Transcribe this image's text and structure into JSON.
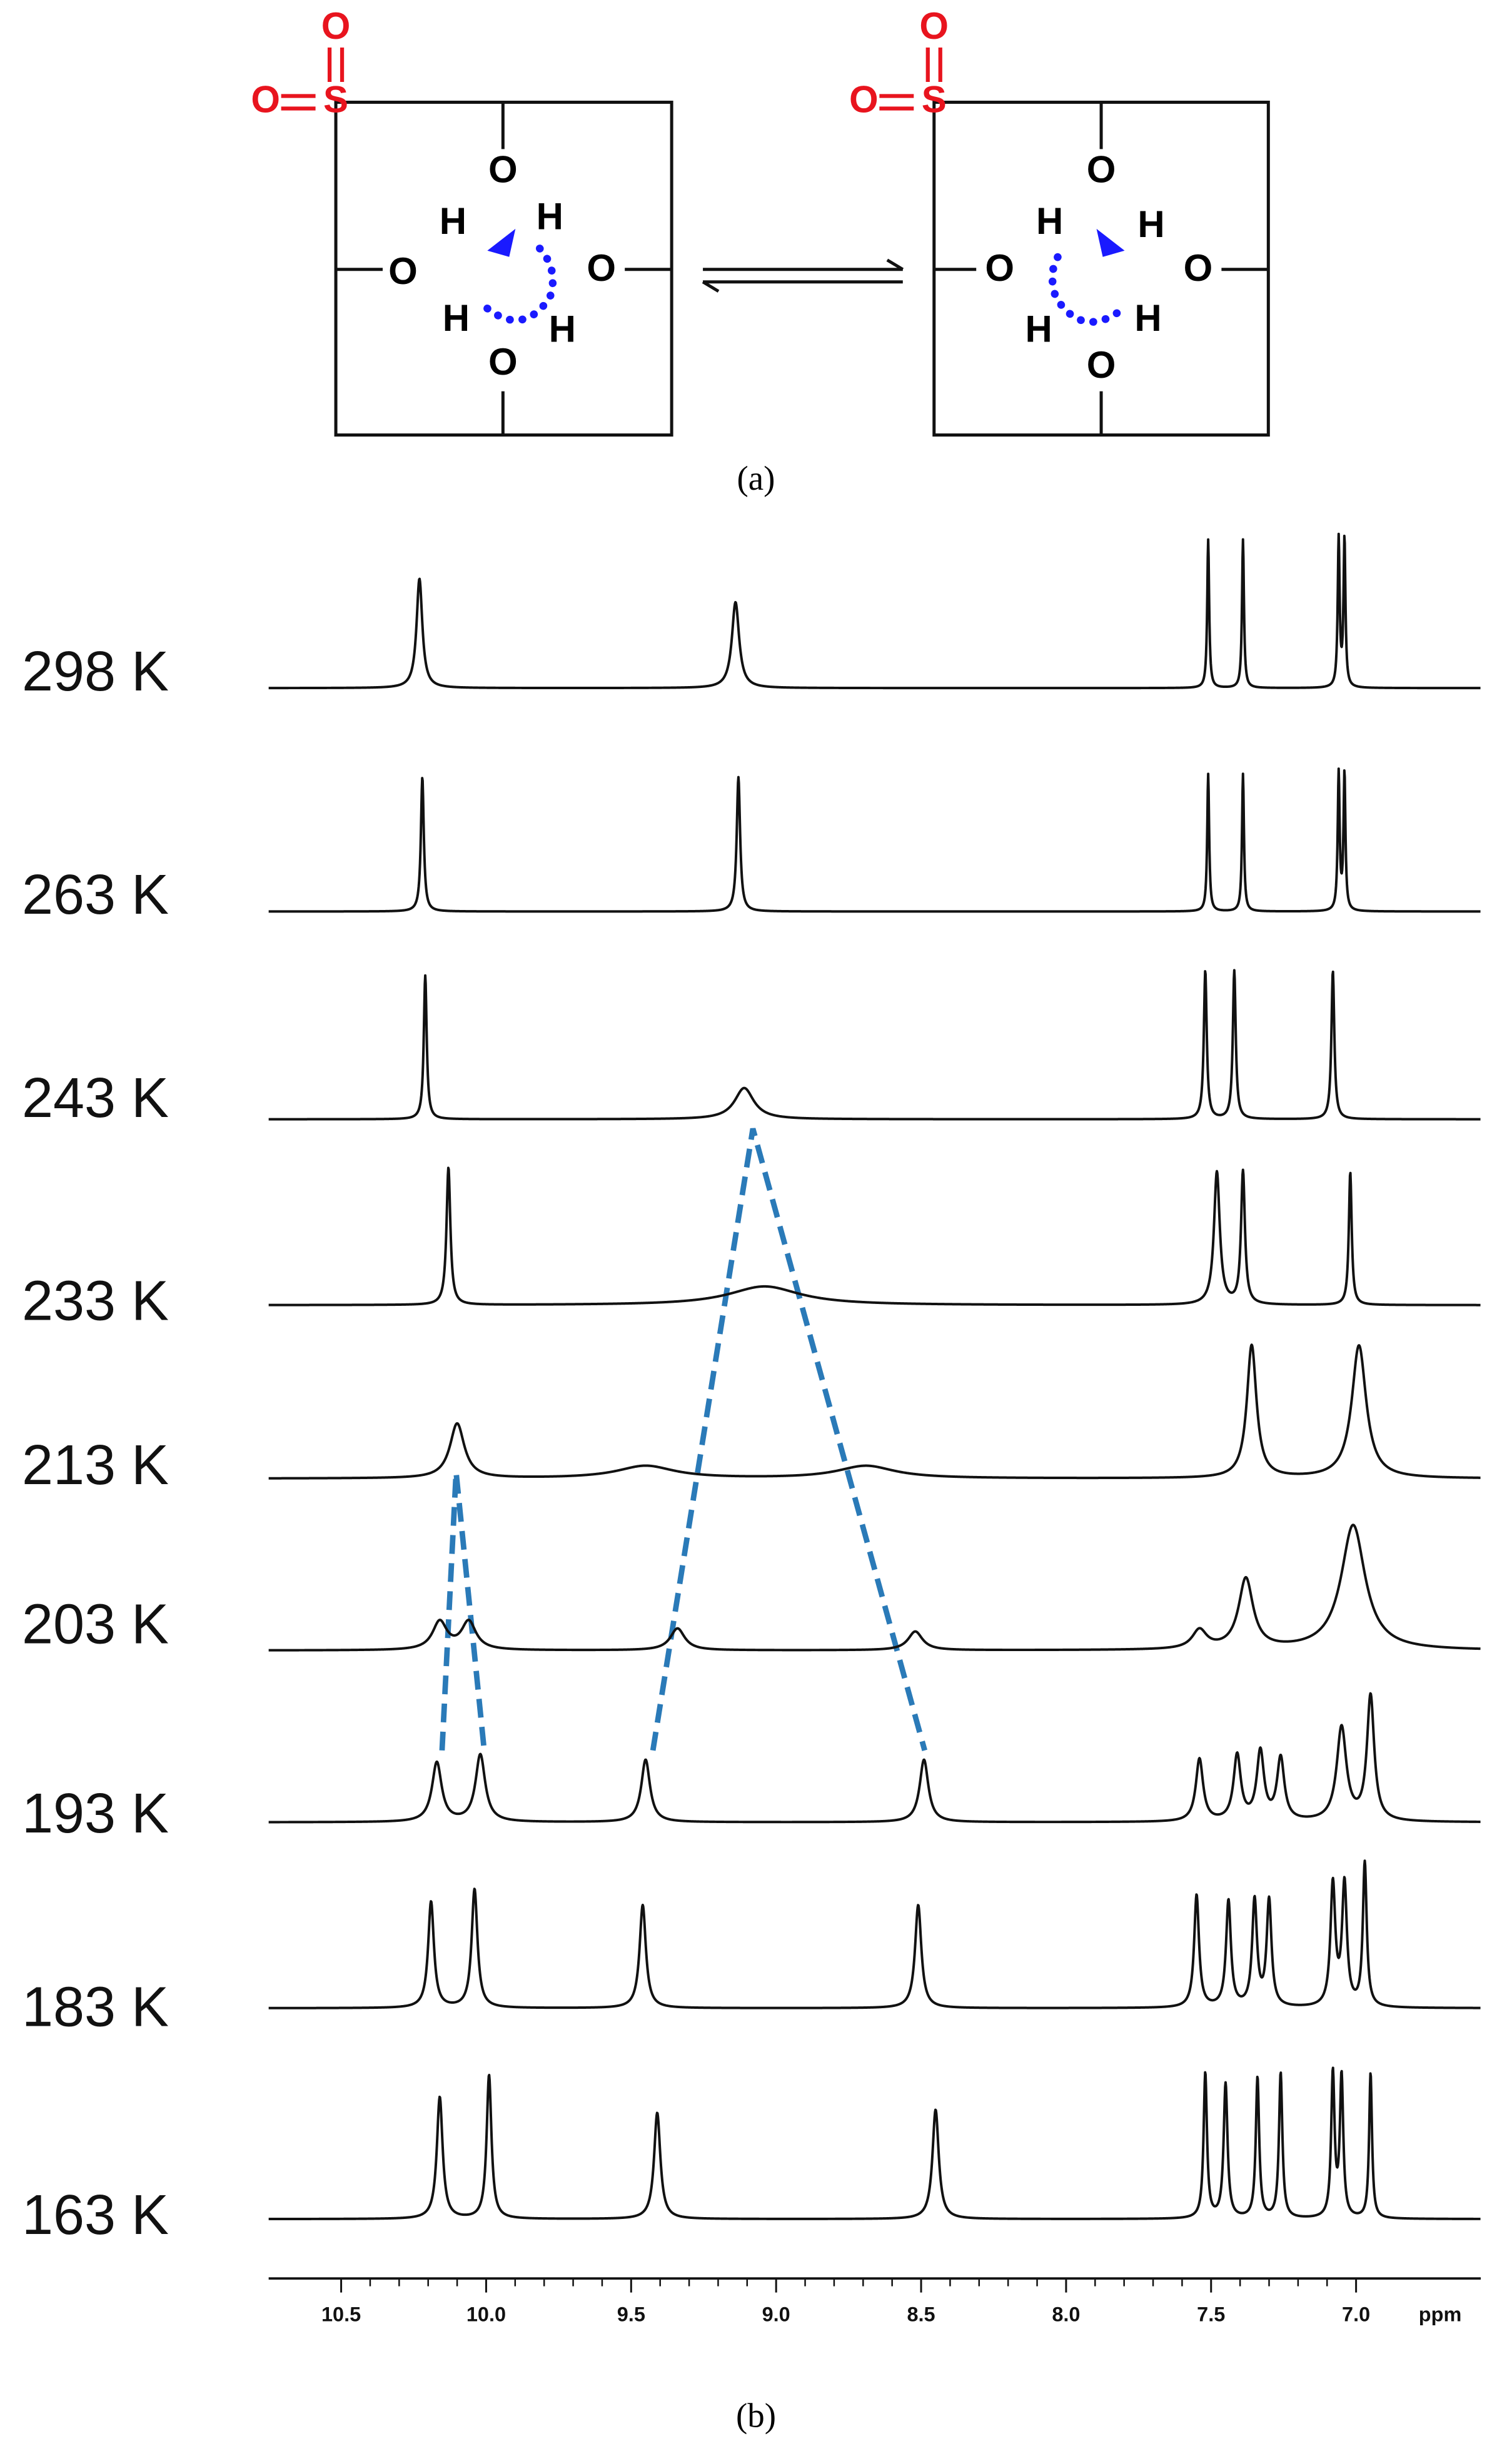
{
  "scheme": {
    "label": "(a)",
    "left_atoms": [
      "S",
      "O",
      "O",
      "O",
      "H",
      "H",
      "O",
      "O",
      "H",
      "H",
      "O"
    ],
    "right_atoms": [
      "S",
      "O",
      "O",
      "O",
      "H",
      "H",
      "O",
      "O",
      "H",
      "H",
      "O"
    ]
  },
  "chart_data": {
    "type": "stacked-spectra",
    "label": "(b)",
    "x_unit": "ppm",
    "xlim": [
      10.75,
      6.57
    ],
    "xticks": [
      10.5,
      {
        "value": 10,
        "label": "10.0"
      },
      9.5,
      {
        "value": 9,
        "label": "9.0"
      },
      8.5,
      {
        "value": 8,
        "label": "8.0"
      },
      7.5,
      {
        "value": 7,
        "label": "7.0"
      }
    ],
    "color": "#111111",
    "spectra": [
      {
        "name": "298 K",
        "peaks": [
          {
            "ppm": 10.23,
            "height": 70,
            "width": 0.012
          },
          {
            "ppm": 9.14,
            "height": 55,
            "width": 0.015
          },
          {
            "ppm": 7.51,
            "height": 95,
            "width": 0.004
          },
          {
            "ppm": 7.39,
            "height": 95,
            "width": 0.004
          },
          {
            "ppm": 7.06,
            "height": 95,
            "width": 0.004
          },
          {
            "ppm": 7.04,
            "height": 95,
            "width": 0.004
          }
        ]
      },
      {
        "name": "263 K",
        "peaks": [
          {
            "ppm": 10.22,
            "height": 86,
            "width": 0.006
          },
          {
            "ppm": 9.13,
            "height": 86,
            "width": 0.007
          },
          {
            "ppm": 7.51,
            "height": 88,
            "width": 0.004
          },
          {
            "ppm": 7.39,
            "height": 88,
            "width": 0.004
          },
          {
            "ppm": 7.06,
            "height": 88,
            "width": 0.004
          },
          {
            "ppm": 7.04,
            "height": 88,
            "width": 0.004
          }
        ]
      },
      {
        "name": "243 K",
        "peaks": [
          {
            "ppm": 10.21,
            "height": 92,
            "width": 0.006
          },
          {
            "ppm": 9.11,
            "height": 20,
            "width": 0.04
          },
          {
            "ppm": 7.52,
            "height": 95,
            "width": 0.006
          },
          {
            "ppm": 7.42,
            "height": 95,
            "width": 0.006
          },
          {
            "ppm": 7.08,
            "height": 95,
            "width": 0.006
          }
        ]
      },
      {
        "name": "233 K",
        "peaks": [
          {
            "ppm": 10.13,
            "height": 88,
            "width": 0.008
          },
          {
            "ppm": 9.04,
            "height": 12,
            "width": 0.15
          },
          {
            "ppm": 7.48,
            "height": 85,
            "width": 0.012
          },
          {
            "ppm": 7.39,
            "height": 85,
            "width": 0.008
          },
          {
            "ppm": 7.02,
            "height": 85,
            "width": 0.006
          }
        ]
      },
      {
        "name": "213 K",
        "peaks": [
          {
            "ppm": 10.1,
            "height": 35,
            "width": 0.03
          },
          {
            "ppm": 9.45,
            "height": 8,
            "width": 0.12
          },
          {
            "ppm": 8.69,
            "height": 8,
            "width": 0.12
          },
          {
            "ppm": 7.36,
            "height": 85,
            "width": 0.02
          },
          {
            "ppm": 6.99,
            "height": 85,
            "width": 0.03
          }
        ]
      },
      {
        "name": "203 K",
        "peaks": [
          {
            "ppm": 10.16,
            "height": 18,
            "width": 0.03
          },
          {
            "ppm": 10.06,
            "height": 18,
            "width": 0.03
          },
          {
            "ppm": 9.34,
            "height": 14,
            "width": 0.03
          },
          {
            "ppm": 8.52,
            "height": 12,
            "width": 0.03
          },
          {
            "ppm": 7.54,
            "height": 12,
            "width": 0.03
          },
          {
            "ppm": 7.38,
            "height": 45,
            "width": 0.03
          },
          {
            "ppm": 7.01,
            "height": 80,
            "width": 0.05
          }
        ]
      },
      {
        "name": "193 K",
        "peaks": [
          {
            "ppm": 10.17,
            "height": 38,
            "width": 0.02
          },
          {
            "ppm": 10.02,
            "height": 43,
            "width": 0.02
          },
          {
            "ppm": 9.45,
            "height": 40,
            "width": 0.018
          },
          {
            "ppm": 8.49,
            "height": 40,
            "width": 0.018
          },
          {
            "ppm": 7.54,
            "height": 40,
            "width": 0.015
          },
          {
            "ppm": 7.41,
            "height": 42,
            "width": 0.015
          },
          {
            "ppm": 7.33,
            "height": 44,
            "width": 0.015
          },
          {
            "ppm": 7.26,
            "height": 40,
            "width": 0.015
          },
          {
            "ppm": 7.05,
            "height": 60,
            "width": 0.02
          },
          {
            "ppm": 6.95,
            "height": 80,
            "width": 0.015
          }
        ]
      },
      {
        "name": "183 K",
        "peaks": [
          {
            "ppm": 10.19,
            "height": 68,
            "width": 0.012
          },
          {
            "ppm": 10.04,
            "height": 76,
            "width": 0.012
          },
          {
            "ppm": 9.46,
            "height": 66,
            "width": 0.013
          },
          {
            "ppm": 8.51,
            "height": 66,
            "width": 0.013
          },
          {
            "ppm": 7.55,
            "height": 72,
            "width": 0.01
          },
          {
            "ppm": 7.44,
            "height": 68,
            "width": 0.01
          },
          {
            "ppm": 7.35,
            "height": 68,
            "width": 0.01
          },
          {
            "ppm": 7.3,
            "height": 68,
            "width": 0.01
          },
          {
            "ppm": 7.08,
            "height": 78,
            "width": 0.01
          },
          {
            "ppm": 7.04,
            "height": 78,
            "width": 0.01
          },
          {
            "ppm": 6.97,
            "height": 92,
            "width": 0.008
          }
        ]
      },
      {
        "name": "163 K",
        "peaks": [
          {
            "ppm": 10.16,
            "height": 78,
            "width": 0.012
          },
          {
            "ppm": 9.99,
            "height": 92,
            "width": 0.01
          },
          {
            "ppm": 9.41,
            "height": 68,
            "width": 0.013
          },
          {
            "ppm": 8.45,
            "height": 70,
            "width": 0.013
          },
          {
            "ppm": 7.52,
            "height": 93,
            "width": 0.007
          },
          {
            "ppm": 7.45,
            "height": 86,
            "width": 0.008
          },
          {
            "ppm": 7.34,
            "height": 90,
            "width": 0.007
          },
          {
            "ppm": 7.26,
            "height": 93,
            "width": 0.007
          },
          {
            "ppm": 7.08,
            "height": 92,
            "width": 0.007
          },
          {
            "ppm": 7.05,
            "height": 90,
            "width": 0.007
          },
          {
            "ppm": 6.95,
            "height": 93,
            "width": 0.006
          }
        ]
      }
    ]
  }
}
